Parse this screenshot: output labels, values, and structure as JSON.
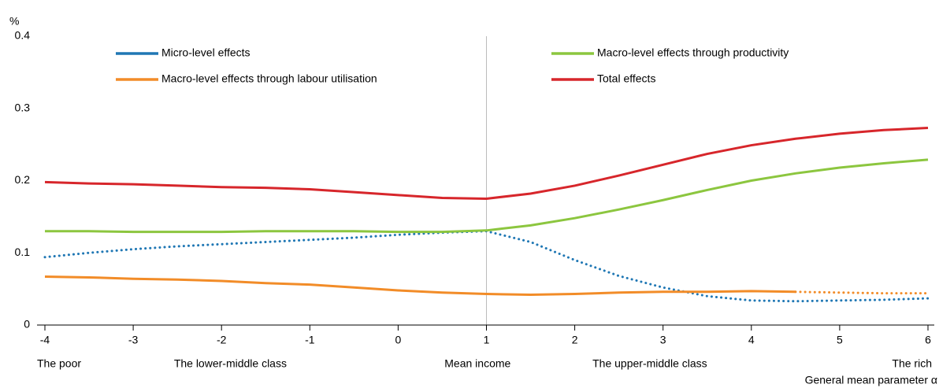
{
  "chart_data": {
    "type": "line",
    "y_unit": "%",
    "x_label": "General mean parameter α",
    "x": [
      -4,
      -3.5,
      -3,
      -2.5,
      -2,
      -1.5,
      -1,
      -0.5,
      0,
      0.5,
      1,
      1.5,
      2,
      2.5,
      3,
      3.5,
      4,
      4.5,
      5,
      5.5,
      6
    ],
    "xlim": [
      -4,
      6
    ],
    "xticks": [
      -4,
      -3,
      -2,
      -1,
      0,
      1,
      2,
      3,
      4,
      5,
      6
    ],
    "ylim": [
      0,
      0.4
    ],
    "yticks": [
      0,
      0.1,
      0.2,
      0.3,
      0.4
    ],
    "vline": 1,
    "x_annotations": [
      {
        "x": -4,
        "label": "The poor"
      },
      {
        "x": -1.9,
        "label": "The lower-middle class"
      },
      {
        "x": 0.9,
        "label": "Mean income"
      },
      {
        "x": 2.85,
        "label": "The upper-middle class"
      },
      {
        "x": 6,
        "label": "The rich"
      }
    ],
    "series": [
      {
        "name": "Micro-level effects",
        "color": "#1f77b4",
        "line_style": "dotted",
        "values": [
          0.094,
          0.1,
          0.105,
          0.109,
          0.112,
          0.115,
          0.118,
          0.121,
          0.125,
          0.128,
          0.13,
          0.115,
          0.09,
          0.068,
          0.052,
          0.04,
          0.034,
          0.033,
          0.034,
          0.035,
          0.037
        ]
      },
      {
        "name": "Macro-level effects through productivity",
        "color": "#8cc63f",
        "line_style": "solid",
        "values": [
          0.13,
          0.13,
          0.129,
          0.129,
          0.129,
          0.13,
          0.13,
          0.13,
          0.129,
          0.129,
          0.131,
          0.138,
          0.148,
          0.16,
          0.173,
          0.187,
          0.2,
          0.21,
          0.218,
          0.224,
          0.229
        ]
      },
      {
        "name": "Macro-level effects through labour utilisation",
        "color": "#f28c28",
        "line_style": "solid",
        "dotted_from_x": 4.5,
        "values": [
          0.067,
          0.066,
          0.064,
          0.063,
          0.061,
          0.058,
          0.056,
          0.052,
          0.048,
          0.045,
          0.043,
          0.042,
          0.043,
          0.045,
          0.046,
          0.046,
          0.047,
          0.046,
          0.045,
          0.044,
          0.044
        ]
      },
      {
        "name": "Total effects",
        "color": "#d7262b",
        "line_style": "solid",
        "values": [
          0.198,
          0.196,
          0.195,
          0.193,
          0.191,
          0.19,
          0.188,
          0.184,
          0.18,
          0.176,
          0.175,
          0.182,
          0.193,
          0.207,
          0.222,
          0.237,
          0.249,
          0.258,
          0.265,
          0.27,
          0.273
        ]
      }
    ]
  }
}
